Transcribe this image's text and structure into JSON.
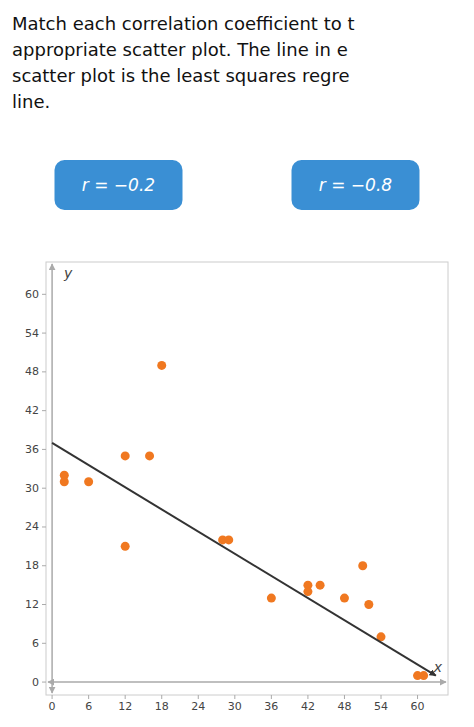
{
  "chart_data": {
    "type": "scatter",
    "text_lines": [
      "Match each correlation coefficient to t",
      "appropriate scatter plot. The line in e",
      "scatter plot is the least squares regre",
      "line."
    ],
    "badges": {
      "labels": [
        "r = −0.2",
        "r = −0.8"
      ],
      "color": "#3a8fd4"
    },
    "series": [
      {
        "type": "scatter",
        "color": "#f07820",
        "x": [
          2,
          2,
          6,
          12,
          12,
          16,
          18,
          28,
          29,
          36,
          42,
          42,
          44,
          48,
          51,
          52,
          54,
          60,
          61
        ],
        "values": [
          32,
          31,
          31,
          35,
          21,
          35,
          49,
          22,
          22,
          13,
          15,
          14,
          15,
          13,
          18,
          12,
          7,
          1,
          1
        ]
      },
      {
        "type": "line",
        "color": "#333333",
        "marker": "arrow",
        "x": [
          0,
          63
        ],
        "values": [
          37,
          1
        ]
      }
    ],
    "xlabel": "x",
    "ylabel": "y",
    "xlim": [
      -1,
      65
    ],
    "ylim": [
      -2,
      65
    ],
    "xticks": [
      0,
      6,
      12,
      18,
      24,
      30,
      36,
      42,
      48,
      54,
      60
    ],
    "yticks": [
      0,
      6,
      12,
      18,
      24,
      30,
      36,
      42,
      48,
      54,
      60
    ],
    "grid": false
  }
}
